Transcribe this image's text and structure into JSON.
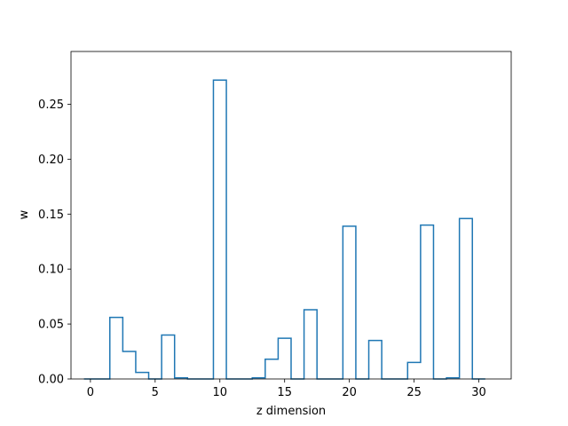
{
  "chart_data": {
    "type": "bar",
    "style": "step-histogram",
    "title": "",
    "xlabel": "z dimension",
    "ylabel": "w",
    "xlim": [
      -1.5,
      32.5
    ],
    "ylim": [
      0,
      0.298
    ],
    "grid": false,
    "x_ticks": [
      0,
      5,
      10,
      15,
      20,
      25,
      30
    ],
    "x_tick_labels": [
      "0",
      "5",
      "10",
      "15",
      "20",
      "25",
      "30"
    ],
    "y_ticks": [
      0.0,
      0.05,
      0.1,
      0.15,
      0.2,
      0.25
    ],
    "y_tick_labels": [
      "0.00",
      "0.05",
      "0.10",
      "0.15",
      "0.20",
      "0.25"
    ],
    "color": "#1f77b4",
    "categories": [
      0,
      1,
      2,
      3,
      4,
      5,
      6,
      7,
      8,
      9,
      10,
      11,
      12,
      13,
      14,
      15,
      16,
      17,
      18,
      19,
      20,
      21,
      22,
      23,
      24,
      25,
      26,
      27,
      28,
      29,
      30
    ],
    "values": [
      0.0,
      0.0,
      0.056,
      0.025,
      0.006,
      0.0,
      0.04,
      0.001,
      0.0,
      0.0,
      0.272,
      0.0,
      0.0,
      0.001,
      0.018,
      0.037,
      0.0,
      0.063,
      0.0,
      0.0,
      0.139,
      0.0,
      0.035,
      0.0,
      0.0,
      0.015,
      0.14,
      0.0,
      0.001,
      0.146,
      0.0
    ]
  }
}
